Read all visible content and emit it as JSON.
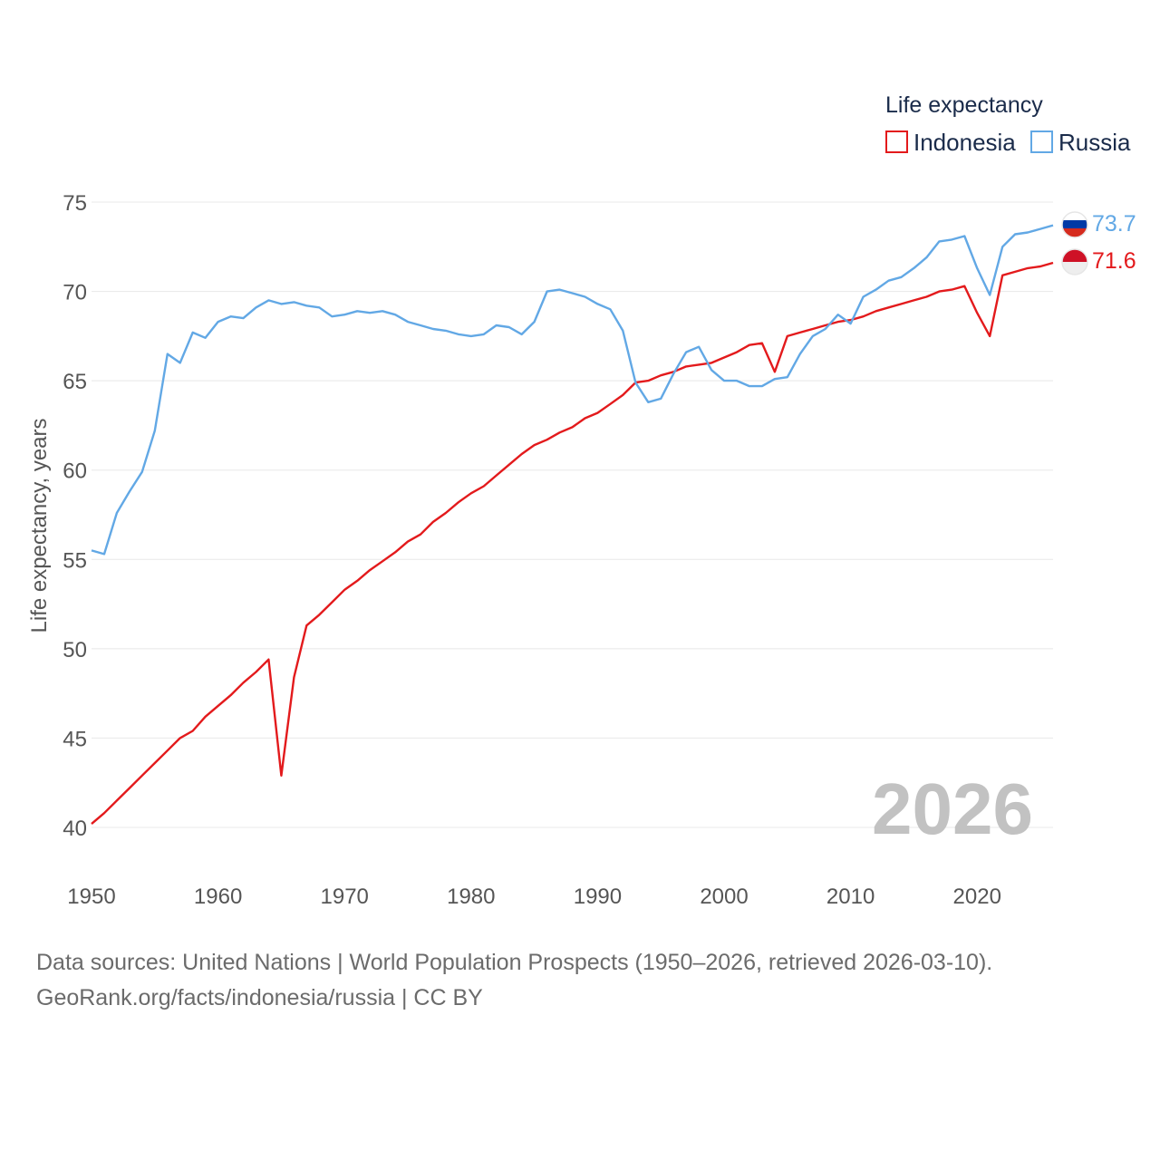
{
  "chart_data": {
    "type": "line",
    "title": "",
    "watermark_year": "2026",
    "ylabel": "Life expectancy, years",
    "xlabel": "",
    "xlim": [
      1950,
      2026
    ],
    "ylim": [
      40,
      75
    ],
    "x_ticks": [
      1950,
      1960,
      1970,
      1980,
      1990,
      2000,
      2010,
      2020
    ],
    "y_ticks": [
      40,
      45,
      50,
      55,
      60,
      65,
      70,
      75
    ],
    "legend": {
      "title": "Life expectancy",
      "placement": "top-right"
    },
    "x": [
      1950,
      1951,
      1952,
      1953,
      1954,
      1955,
      1956,
      1957,
      1958,
      1959,
      1960,
      1961,
      1962,
      1963,
      1964,
      1965,
      1966,
      1967,
      1968,
      1969,
      1970,
      1971,
      1972,
      1973,
      1974,
      1975,
      1976,
      1977,
      1978,
      1979,
      1980,
      1981,
      1982,
      1983,
      1984,
      1985,
      1986,
      1987,
      1988,
      1989,
      1990,
      1991,
      1992,
      1993,
      1994,
      1995,
      1996,
      1997,
      1998,
      1999,
      2000,
      2001,
      2002,
      2003,
      2004,
      2005,
      2006,
      2007,
      2008,
      2009,
      2010,
      2011,
      2012,
      2013,
      2014,
      2015,
      2016,
      2017,
      2018,
      2019,
      2020,
      2021,
      2022,
      2023,
      2024,
      2025,
      2026
    ],
    "series": [
      {
        "name": "Indonesia",
        "color": "#e31a1c",
        "end_label": "71.6",
        "flag": "indonesia-flag",
        "values": [
          40.2,
          40.8,
          41.5,
          42.2,
          42.9,
          43.6,
          44.3,
          45.0,
          45.4,
          46.2,
          46.8,
          47.4,
          48.1,
          48.7,
          49.4,
          42.9,
          48.4,
          51.3,
          51.9,
          52.6,
          53.3,
          53.8,
          54.4,
          54.9,
          55.4,
          56.0,
          56.4,
          57.1,
          57.6,
          58.2,
          58.7,
          59.1,
          59.7,
          60.3,
          60.9,
          61.4,
          61.7,
          62.1,
          62.4,
          62.9,
          63.2,
          63.7,
          64.2,
          64.9,
          65.0,
          65.3,
          65.5,
          65.8,
          65.9,
          66.0,
          66.3,
          66.6,
          67.0,
          67.1,
          65.5,
          67.5,
          67.7,
          67.9,
          68.1,
          68.3,
          68.4,
          68.6,
          68.9,
          69.1,
          69.3,
          69.5,
          69.7,
          70.0,
          70.1,
          70.3,
          68.8,
          67.5,
          70.9,
          71.1,
          71.3,
          71.4,
          71.6
        ]
      },
      {
        "name": "Russia",
        "color": "#62a8e5",
        "end_label": "73.7",
        "flag": "russia-flag",
        "values": [
          55.5,
          55.3,
          57.6,
          58.8,
          59.9,
          62.2,
          66.5,
          66.0,
          67.7,
          67.4,
          68.3,
          68.6,
          68.5,
          69.1,
          69.5,
          69.3,
          69.4,
          69.2,
          69.1,
          68.6,
          68.7,
          68.9,
          68.8,
          68.9,
          68.7,
          68.3,
          68.1,
          67.9,
          67.8,
          67.6,
          67.5,
          67.6,
          68.1,
          68.0,
          67.6,
          68.3,
          70.0,
          70.1,
          69.9,
          69.7,
          69.3,
          69.0,
          67.8,
          64.9,
          63.8,
          64.0,
          65.4,
          66.6,
          66.9,
          65.6,
          65.0,
          65.0,
          64.7,
          64.7,
          65.1,
          65.2,
          66.5,
          67.5,
          67.9,
          68.7,
          68.2,
          69.7,
          70.1,
          70.6,
          70.8,
          71.3,
          71.9,
          72.8,
          72.9,
          73.1,
          71.3,
          69.8,
          72.5,
          73.2,
          73.3,
          73.5,
          73.7
        ]
      }
    ]
  },
  "footer": {
    "line1": "Data sources: United Nations | World Population Prospects (1950–2026, retrieved 2026-03-10).",
    "line2": "GeoRank.org/facts/indonesia/russia | CC BY"
  }
}
